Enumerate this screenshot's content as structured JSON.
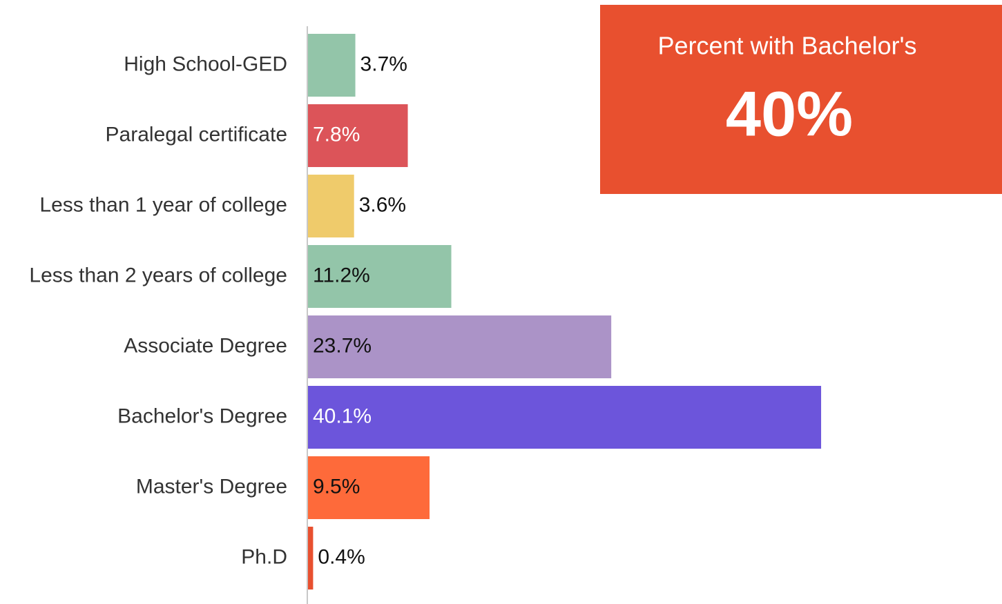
{
  "chart_data": {
    "type": "bar",
    "orientation": "horizontal",
    "categories": [
      "High School-GED",
      "Paralegal certificate",
      "Less than 1 year of college",
      "Less than 2 years of college",
      "Associate Degree",
      "Bachelor's Degree",
      "Master's Degree",
      "Ph.D"
    ],
    "values": [
      3.7,
      7.8,
      3.6,
      11.2,
      23.7,
      40.1,
      9.5,
      0.4
    ],
    "value_labels": [
      "3.7%",
      "7.8%",
      "3.6%",
      "11.2%",
      "23.7%",
      "40.1%",
      "9.5%",
      "0.4%"
    ],
    "colors": [
      "#93c5a9",
      "#dc5459",
      "#efcb6b",
      "#93c5a9",
      "#ab93c7",
      "#6c55db",
      "#fe6a3a",
      "#e8502f"
    ],
    "xlim": [
      0,
      50
    ],
    "callout": {
      "title": "Percent with Bachelor's",
      "text": "40%",
      "color": "#e8502f"
    }
  }
}
